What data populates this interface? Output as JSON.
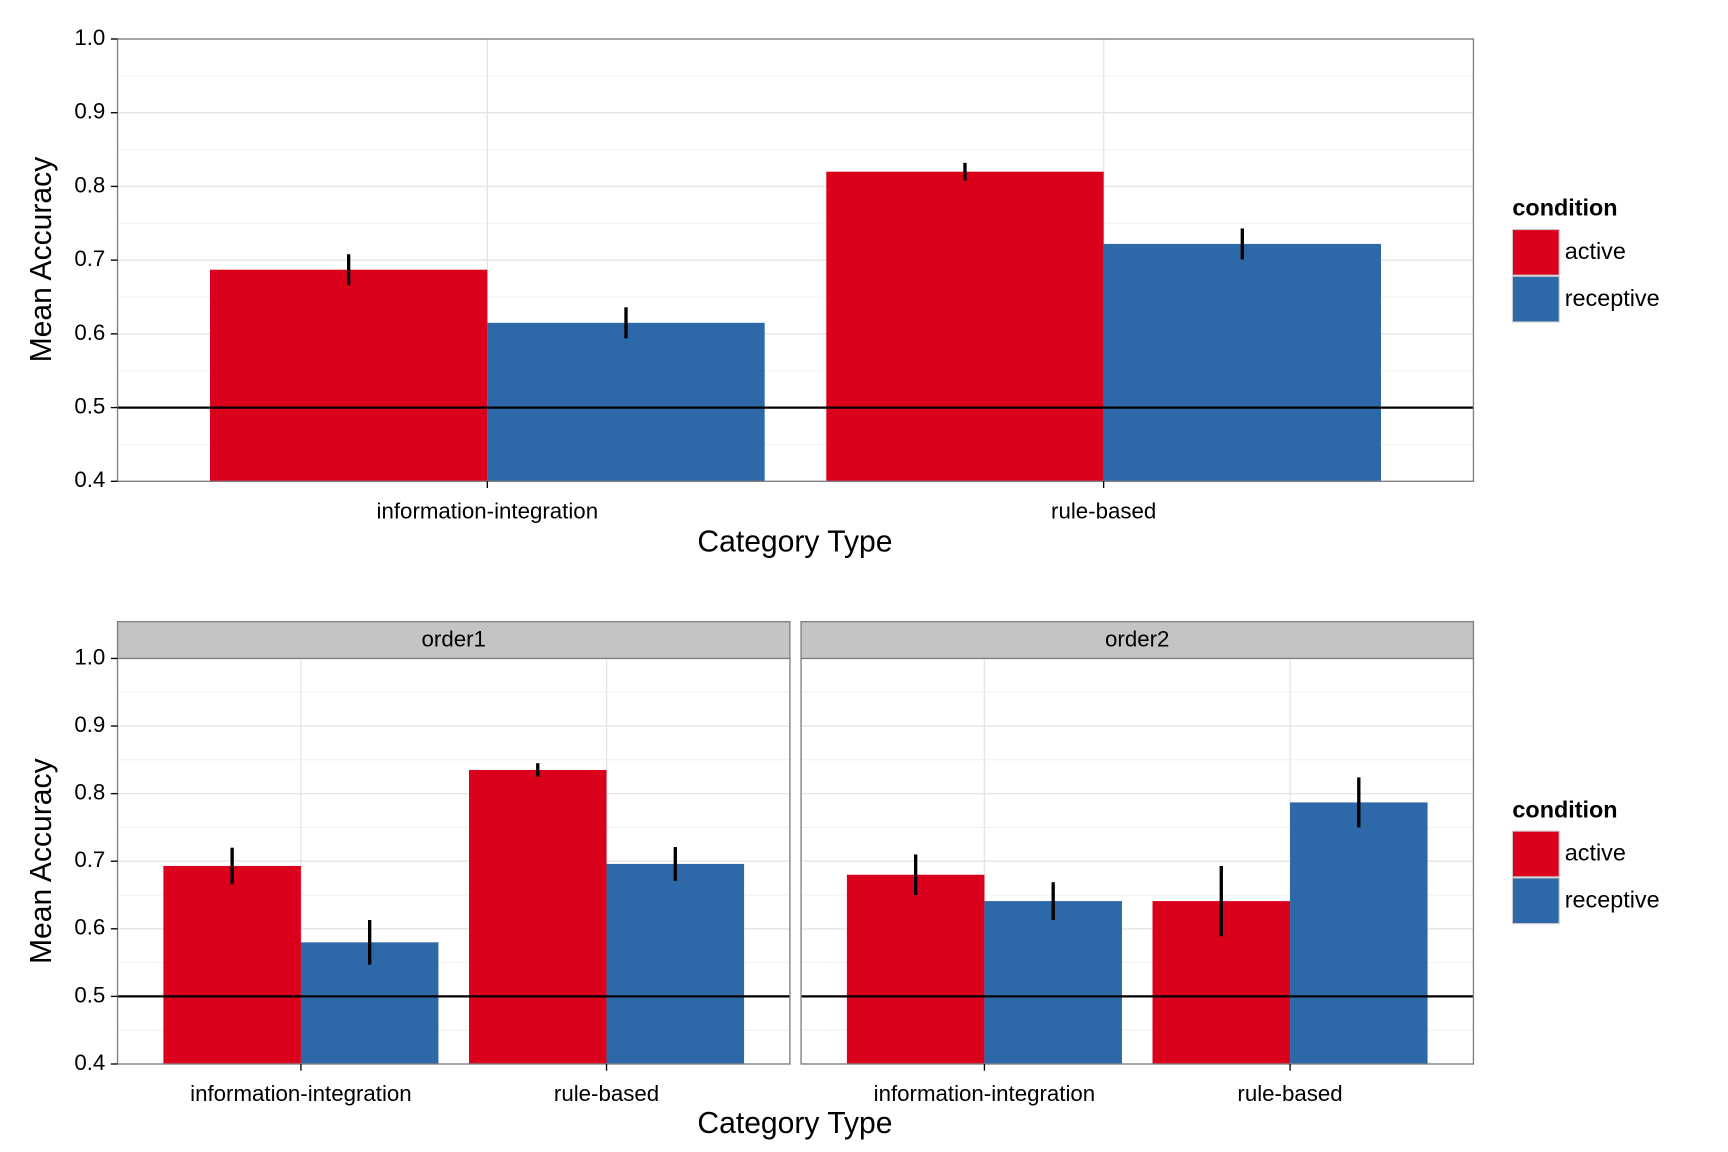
{
  "chart_data": [
    {
      "type": "bar",
      "x_label": "Category Type",
      "y_label": "Mean Accuracy",
      "legend_title": "condition",
      "categories": [
        "information-integration",
        "rule-based"
      ],
      "series": [
        {
          "name": "active",
          "color": "#db001b",
          "values": [
            0.687,
            0.82
          ],
          "errors": [
            0.021,
            0.012
          ]
        },
        {
          "name": "receptive",
          "color": "#2d69a8",
          "values": [
            0.615,
            0.722
          ],
          "errors": [
            0.021,
            0.021
          ]
        }
      ],
      "ylim": [
        0.4,
        1.0
      ],
      "yticks": [
        0.4,
        0.5,
        0.6,
        0.7,
        0.8,
        0.9,
        {
          "value": 1.0,
          "label": "1.0"
        }
      ],
      "hline": 0.5,
      "grid": true
    },
    {
      "type": "facet_bar",
      "x_label": "Category Type",
      "y_label": "Mean Accuracy",
      "legend_title": "condition",
      "categories": [
        "information-integration",
        "rule-based"
      ],
      "facets": [
        {
          "title": "order1",
          "series": [
            {
              "name": "active",
              "color": "#db001b",
              "values": [
                0.693,
                0.835
              ],
              "errors": [
                0.027,
                0.01
              ]
            },
            {
              "name": "receptive",
              "color": "#2d69a8",
              "values": [
                0.58,
                0.696
              ],
              "errors": [
                0.033,
                0.025
              ]
            }
          ]
        },
        {
          "title": "order2",
          "series": [
            {
              "name": "active",
              "color": "#db001b",
              "values": [
                0.68,
                0.641
              ],
              "errors": [
                0.03,
                0.052
              ]
            },
            {
              "name": "receptive",
              "color": "#2d69a8",
              "values": [
                0.641,
                0.787
              ],
              "errors": [
                0.028,
                0.037
              ]
            }
          ]
        }
      ],
      "ylim": [
        0.4,
        1.0
      ],
      "yticks": [
        0.4,
        0.5,
        0.6,
        0.7,
        0.8,
        0.9,
        {
          "value": 1.0,
          "label": "1.0"
        }
      ],
      "hline": 0.5,
      "grid": true
    }
  ]
}
